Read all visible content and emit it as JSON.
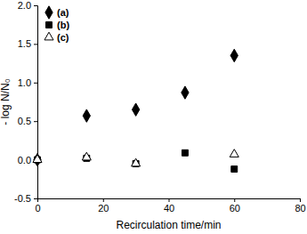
{
  "chart_data": {
    "type": "scatter",
    "x_label": "Recirculation time/min",
    "y_label": "- log N/N₀",
    "xlim": [
      0,
      80
    ],
    "xticks": [
      0,
      20,
      40,
      60,
      80
    ],
    "ylim": [
      -0.5,
      2.0
    ],
    "yticks": [
      {
        "value": -0.5,
        "label": "-0.5"
      },
      {
        "value": 0,
        "label": "0.0"
      },
      {
        "value": 0.5,
        "label": "0.5"
      },
      {
        "value": 1,
        "label": "1.0"
      },
      {
        "value": 1.5,
        "label": "1.5"
      },
      {
        "value": 2,
        "label": "2.0"
      }
    ],
    "legend": "upper-left",
    "series": [
      {
        "name": "(a)",
        "color": "#000000",
        "marker": "diamond",
        "x": [
          0,
          15,
          30,
          45,
          60
        ],
        "values": [
          0,
          0.57,
          0.65,
          0.87,
          1.35
        ]
      },
      {
        "name": "(b)",
        "color": "#000000",
        "marker": "square",
        "x": [
          0,
          15,
          30,
          45,
          60
        ],
        "values": [
          0,
          0.02,
          -0.05,
          0.09,
          -0.12
        ]
      },
      {
        "name": "(c)",
        "color": "#000000",
        "marker": "open-triangle",
        "x": [
          0,
          15,
          30,
          60
        ],
        "values": [
          0,
          0.03,
          -0.05,
          0.07
        ]
      }
    ]
  }
}
